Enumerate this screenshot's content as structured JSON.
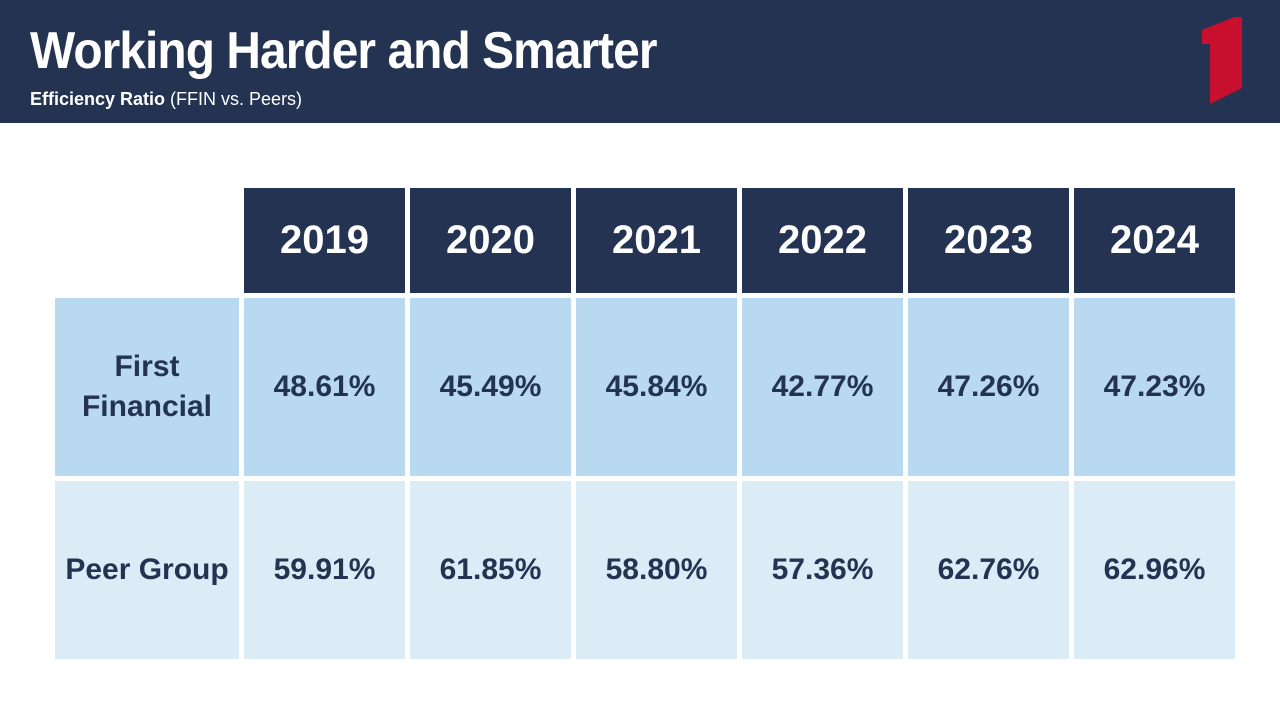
{
  "header": {
    "title": "Working Harder and Smarter",
    "subtitle_bold": "Efficiency Ratio",
    "subtitle_rest": " (FFIN vs. Peers)",
    "background_color": "#243352",
    "logo_icon": "first-financial-logo-icon",
    "logo_color": "#c8102e"
  },
  "table": {
    "years": [
      "2019",
      "2020",
      "2021",
      "2022",
      "2023",
      "2024"
    ],
    "rows": [
      {
        "label_line1": "First",
        "label_line2": "Financial",
        "values": [
          "48.61%",
          "45.49%",
          "45.84%",
          "42.77%",
          "47.26%",
          "47.23%"
        ]
      },
      {
        "label": "Peer Group",
        "values": [
          "59.91%",
          "61.85%",
          "58.80%",
          "57.36%",
          "62.76%",
          "62.96%"
        ]
      }
    ],
    "header_color": "#243352",
    "first_financial_row_color": "#b8d9ef",
    "peer_group_row_color": "#dcecf7"
  }
}
